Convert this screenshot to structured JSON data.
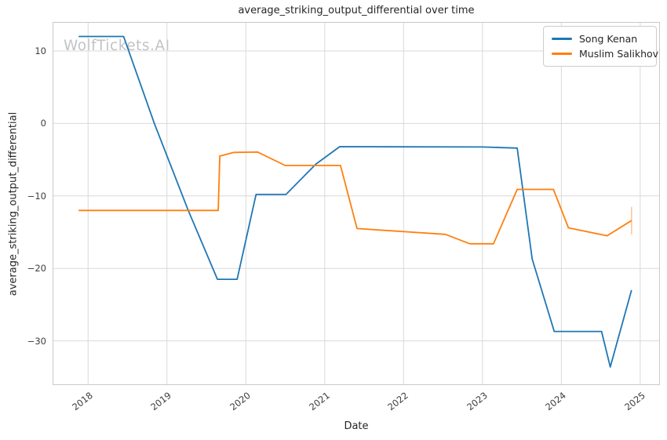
{
  "watermark": "WolfTickets.AI",
  "colors": {
    "background": "#ffffff",
    "grid": "#d9d9d9",
    "spine": "#c9c9c9",
    "text": "#262626",
    "tick_text": "#3d3d3d",
    "watermark": "#c3c3c6",
    "series_blue": "#1f77b4",
    "series_orange": "#ff7f0e"
  },
  "chart_data": {
    "type": "line",
    "title": "average_striking_output_differential over time",
    "xlabel": "Date",
    "ylabel": "average_striking_output_differential",
    "xlim": [
      2017.55,
      2025.25
    ],
    "ylim": [
      -36.1,
      14.0
    ],
    "grid": true,
    "legend_position": "upper right",
    "x_ticks": {
      "values": [
        2018,
        2019,
        2020,
        2021,
        2022,
        2023,
        2024,
        2025
      ],
      "labels": [
        "2018",
        "2019",
        "2020",
        "2021",
        "2022",
        "2023",
        "2024",
        "2025"
      ]
    },
    "y_ticks": {
      "values": [
        10,
        0,
        -10,
        -20,
        -30
      ],
      "labels": [
        "10",
        "0",
        "−10",
        "−20",
        "−30"
      ]
    },
    "series": [
      {
        "name": "Song Kenan",
        "color": "#1f77b4",
        "points": [
          [
            2017.88,
            12.0
          ],
          [
            2018.45,
            12.0
          ],
          [
            2018.84,
            0.0
          ],
          [
            2019.27,
            -12.0
          ],
          [
            2019.64,
            -21.5
          ],
          [
            2019.89,
            -21.5
          ],
          [
            2020.13,
            -9.8
          ],
          [
            2020.51,
            -9.8
          ],
          [
            2020.89,
            -5.6
          ],
          [
            2021.19,
            -3.2
          ],
          [
            2023.0,
            -3.25
          ],
          [
            2023.44,
            -3.4
          ],
          [
            2023.63,
            -18.7
          ],
          [
            2023.91,
            -28.7
          ],
          [
            2024.51,
            -28.7
          ],
          [
            2024.62,
            -33.6
          ],
          [
            2024.89,
            -23.0
          ]
        ]
      },
      {
        "name": "Muslim Salikhov",
        "color": "#ff7f0e",
        "points": [
          [
            2017.88,
            -12.0
          ],
          [
            2019.65,
            -12.0
          ],
          [
            2019.67,
            -4.5
          ],
          [
            2019.85,
            -4.0
          ],
          [
            2020.15,
            -3.95
          ],
          [
            2020.5,
            -5.8
          ],
          [
            2021.2,
            -5.8
          ],
          [
            2021.41,
            -14.5
          ],
          [
            2022.53,
            -15.3
          ],
          [
            2022.84,
            -16.6
          ],
          [
            2023.14,
            -16.6
          ],
          [
            2023.44,
            -9.1
          ],
          [
            2023.9,
            -9.1
          ],
          [
            2024.09,
            -14.4
          ],
          [
            2024.58,
            -15.5
          ],
          [
            2024.89,
            -13.4
          ]
        ],
        "error_bar": {
          "x": 2024.89,
          "y_low": -15.3,
          "y_high": -11.5
        }
      }
    ]
  }
}
